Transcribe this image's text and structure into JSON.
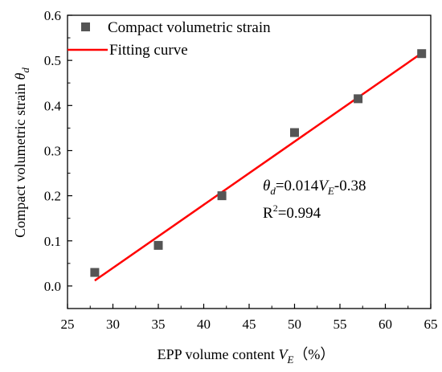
{
  "chart_data": {
    "type": "scatter",
    "xlabel": "EPP volume content V_E（%）",
    "xlabel_main": "EPP volume content ",
    "xlabel_var": "V",
    "xlabel_sub": "E",
    "xlabel_unit": "（%）",
    "ylabel": "Compact volumetric strain θ_d",
    "ylabel_main": "Compact volumetric strain ",
    "ylabel_var": "θ",
    "ylabel_sub": "d",
    "xlim": [
      25,
      65
    ],
    "ylim": [
      -0.05,
      0.6
    ],
    "xticks": [
      25,
      30,
      35,
      40,
      45,
      50,
      55,
      60,
      65
    ],
    "yticks": [
      0.0,
      0.1,
      0.2,
      0.3,
      0.4,
      0.5,
      0.6
    ],
    "ytick_labels": [
      "0.0",
      "0.1",
      "0.2",
      "0.3",
      "0.4",
      "0.5",
      "0.6"
    ],
    "grid": false,
    "legend_position": "top-left",
    "series": [
      {
        "name": "Compact volumetric strain",
        "kind": "scatter",
        "marker": "square",
        "color": "#555555",
        "x": [
          28,
          35,
          42,
          50,
          57,
          64
        ],
        "y": [
          0.03,
          0.09,
          0.2,
          0.34,
          0.415,
          0.515
        ]
      },
      {
        "name": "Fitting curve",
        "kind": "line",
        "color": "#ff0000",
        "x": [
          28,
          64
        ],
        "y": [
          0.012,
          0.516
        ]
      }
    ],
    "annotations": {
      "equation": {
        "theta": "θ",
        "theta_sub": "d",
        "eq_part1": "=0.014",
        "v": "V",
        "v_sub": "E",
        "eq_part2": "-0.38"
      },
      "r2": {
        "prefix": "R",
        "sup": "2",
        "value": "=0.994"
      }
    }
  }
}
